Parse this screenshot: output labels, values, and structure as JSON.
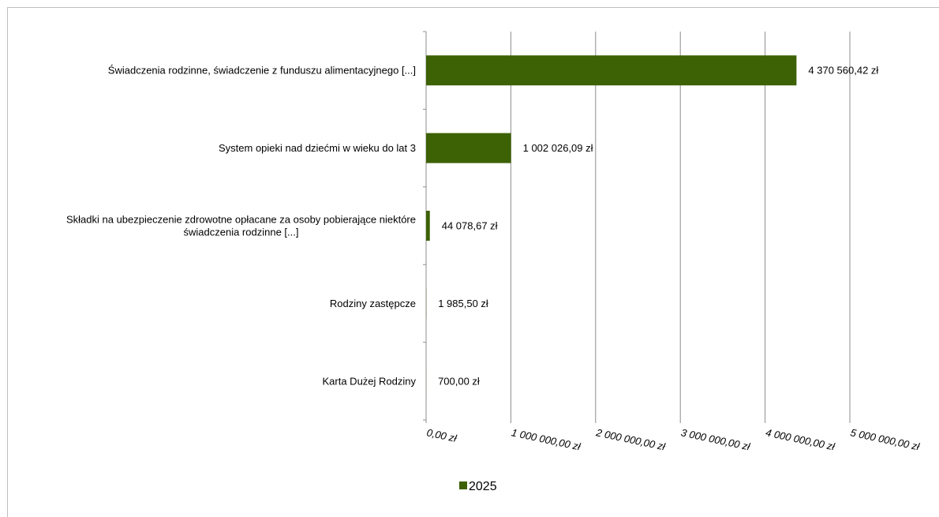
{
  "chart_data": {
    "type": "bar",
    "orientation": "horizontal",
    "categories": [
      "Świadczenia rodzinne, świadczenie z funduszu alimentacyjnego [...]",
      "System opieki nad dziećmi w wieku do lat 3",
      "Składki na ubezpieczenie zdrowotne opłacane za osoby pobierające niektóre świadczenia rodzinne [...]",
      "Rodziny zastępcze",
      "Karta Dużej Rodziny"
    ],
    "category_lines": [
      [
        "Świadczenia rodzinne, świadczenie z funduszu alimentacyjnego [...]"
      ],
      [
        "System opieki nad dziećmi w wieku do lat 3"
      ],
      [
        "Składki na ubezpieczenie zdrowotne opłacane za osoby pobierające niektóre",
        "świadczenia rodzinne [...]"
      ],
      [
        "Rodziny zastępcze"
      ],
      [
        "Karta Dużej Rodziny"
      ]
    ],
    "series": [
      {
        "name": "2025",
        "color": "#3d6105",
        "values": [
          4370560.42,
          1002026.09,
          44078.67,
          1985.5,
          700.0
        ],
        "value_labels": [
          "4 370 560,42 zł",
          "1 002 026,09 zł",
          "44 078,67 zł",
          "1 985,50 zł",
          "700,00 zł"
        ]
      }
    ],
    "xlim": [
      0,
      5000000
    ],
    "x_ticks": [
      0,
      1000000,
      2000000,
      3000000,
      4000000,
      5000000
    ],
    "x_tick_labels": [
      "0,00 zł",
      "1 000 000,00 zł",
      "2 000 000,00 zł",
      "3 000 000,00 zł",
      "4 000 000,00 zł",
      "5 000 000,00 zł"
    ],
    "grid": "vertical",
    "legend": "bottom",
    "title": "",
    "xlabel": "",
    "ylabel": ""
  }
}
